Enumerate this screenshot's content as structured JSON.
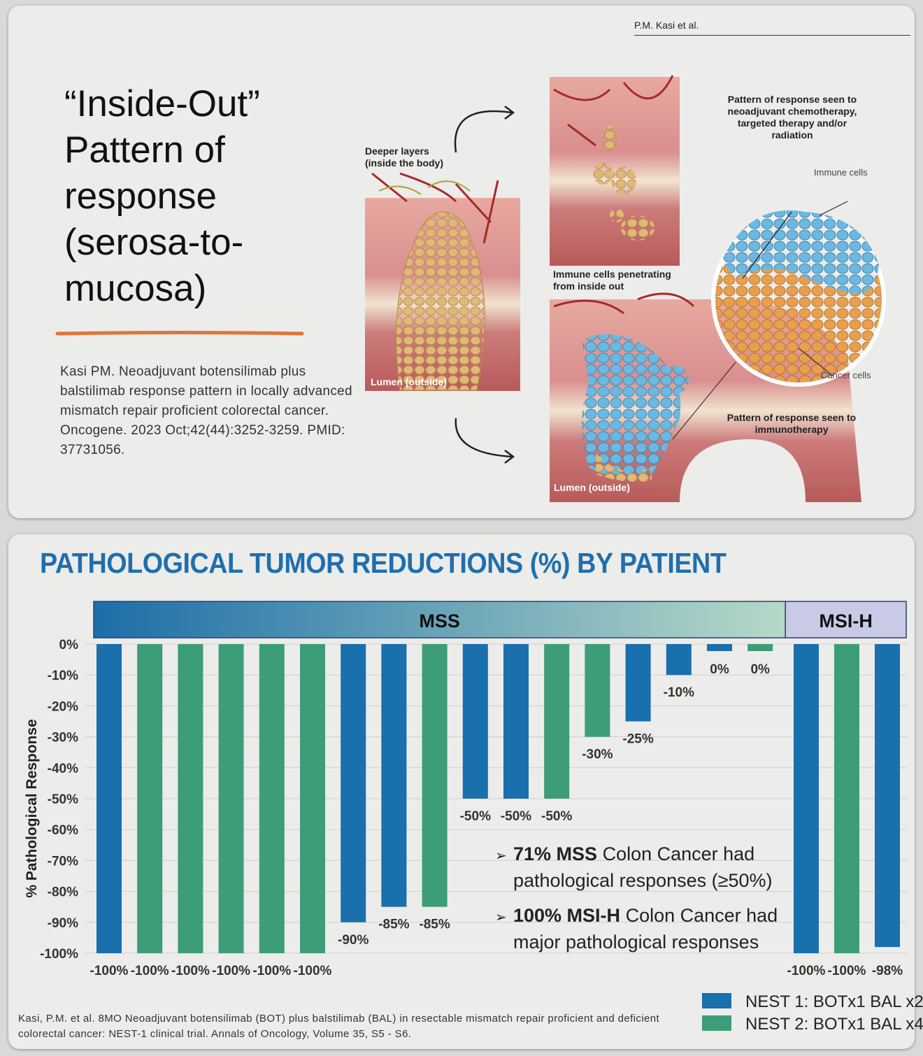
{
  "top_panel": {
    "author_tag": "P.M. Kasi et al.",
    "title": "“Inside-Out”\nPattern of\nresponse\n(serosa-to-\nmucosa)",
    "citation": "Kasi PM. Neoadjuvant botensilimab plus balstilimab response pattern in locally advanced mismatch repair proficient colorectal cancer. Oncogene. 2023 Oct;42(44):3252-3259. PMID: 37731056.",
    "illustration": {
      "deeper_layers": "Deeper layers\n(inside the body)",
      "lumen_left": "Lumen (outside)",
      "lumen_right": "Lumen (outside)",
      "pattern_chemo": "Pattern of response seen to\nneoadjuvant chemotherapy,\ntargeted therapy and/or\nradiation",
      "immune_cells": "Immune cells",
      "cancer_cells": "Cancer cells",
      "immune_penetrating": "Immune cells penetrating\nfrom inside out",
      "pattern_immuno": "Pattern of response seen to\nimmunotherapy"
    },
    "colors": {
      "orange_rule": "#e0743a",
      "tissue": "#d98f8f",
      "tumor": "#d8b070",
      "immune": "#5aaad6"
    }
  },
  "chart": {
    "title": "PATHOLOGICAL TUMOR REDUCTIONS (%) BY PATIENT",
    "footnote": "Kasi, P.M. et al. 8MO Neoadjuvant botensilimab (BOT) plus balstilimab (BAL) in resectable mismatch repair proficient and deficient colorectal cancer: NEST-1 clinical trial. Annals of Oncology, Volume 35, S5 - S6.",
    "annotations": [
      {
        "bold": "71% MSS",
        "rest": " Colon Cancer had",
        "line2": "pathological responses (≥50%)"
      },
      {
        "bold": "100% MSI-H",
        "rest": " Colon Cancer had",
        "line2": "major pathological responses"
      }
    ],
    "arrow_glyph": "➢"
  },
  "chart_data": {
    "type": "bar",
    "title": "PATHOLOGICAL TUMOR REDUCTIONS (%) BY PATIENT",
    "ylabel": "% Pathological Response",
    "ylim": [
      -100,
      0
    ],
    "yticks": [
      0,
      -10,
      -20,
      -30,
      -40,
      -50,
      -60,
      -70,
      -80,
      -90,
      -100
    ],
    "ytick_labels": [
      "0%",
      "-10%",
      "-20%",
      "-30%",
      "-40%",
      "-50%",
      "-60%",
      "-70%",
      "-80%",
      "-90%",
      "-100%"
    ],
    "grid": true,
    "groups": [
      {
        "label": "MSS",
        "count": 17
      },
      {
        "label": "MSI-H",
        "count": 3
      }
    ],
    "values": [
      -100,
      -100,
      -100,
      -100,
      -100,
      -100,
      -90,
      -85,
      -85,
      -50,
      -50,
      -50,
      -30,
      -25,
      -10,
      0,
      0,
      -100,
      -100,
      -98
    ],
    "data_labels": [
      "-100%",
      "-100%",
      "-100%",
      "-100%",
      "-100%",
      "-100%",
      "-90%",
      "-85%",
      "-85%",
      "-50%",
      "-50%",
      "-50%",
      "-30%",
      "-25%",
      "-10%",
      "0%",
      "0%",
      "-100%",
      "-100%",
      "-98%"
    ],
    "series_of_bar": [
      "NEST 1",
      "NEST 2",
      "NEST 2",
      "NEST 2",
      "NEST 2",
      "NEST 2",
      "NEST 1",
      "NEST 1",
      "NEST 2",
      "NEST 1",
      "NEST 1",
      "NEST 2",
      "NEST 2",
      "NEST 1",
      "NEST 1",
      "NEST 1",
      "NEST 2",
      "NEST 1",
      "NEST 2",
      "NEST 1"
    ],
    "series": [
      {
        "name": "NEST 1: BOTx1 BAL x2",
        "color": "#1a6fad"
      },
      {
        "name": "NEST 2: BOTx1 BAL x4",
        "color": "#3c9d78"
      }
    ],
    "legend_position": "bottom-right"
  }
}
